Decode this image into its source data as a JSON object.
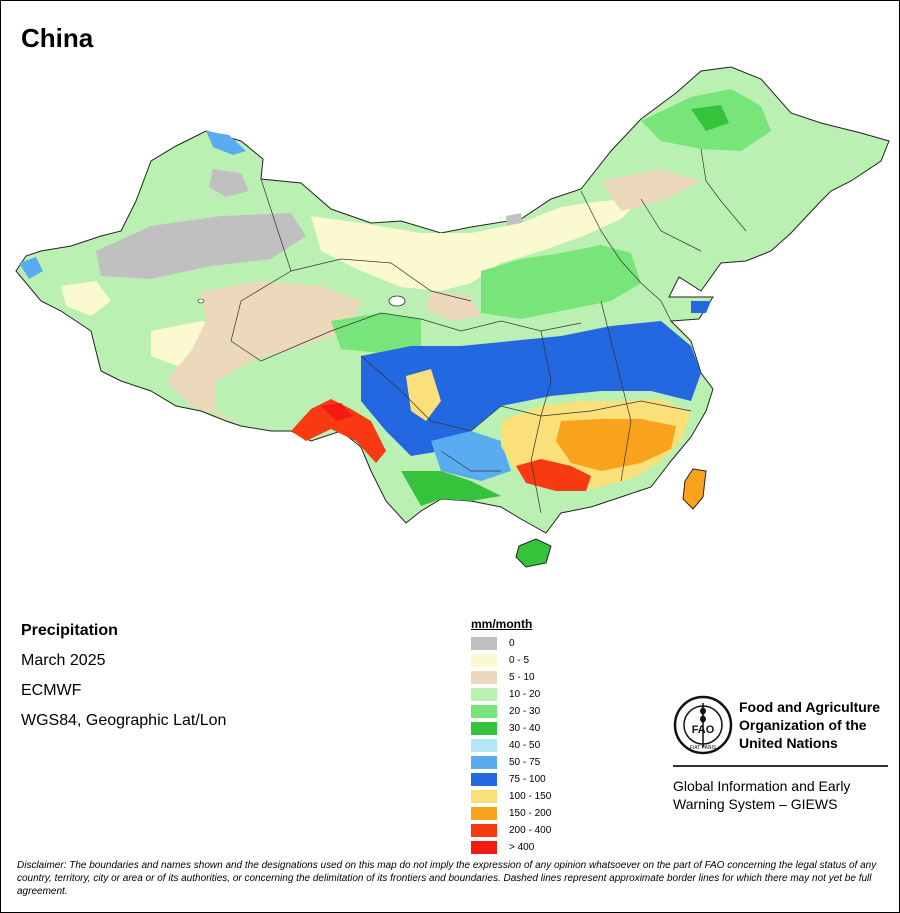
{
  "map": {
    "title": "China",
    "variable": "Precipitation",
    "period": "March 2025",
    "source": "ECMWF",
    "projection": "WGS84, Geographic Lat/Lon"
  },
  "legend": {
    "title": "mm/month",
    "classes": [
      {
        "label": "0",
        "color": "#c0c0c0"
      },
      {
        "label": "0 - 5",
        "color": "#fbf9cf"
      },
      {
        "label": "5 - 10",
        "color": "#ecd9bb"
      },
      {
        "label": "10 - 20",
        "color": "#bbf0b3"
      },
      {
        "label": "20 - 30",
        "color": "#78e57a"
      },
      {
        "label": "30 - 40",
        "color": "#36c33c"
      },
      {
        "label": "40 - 50",
        "color": "#b5e6f8"
      },
      {
        "label": "50 - 75",
        "color": "#5aacf0"
      },
      {
        "label": "75 - 100",
        "color": "#2368e0"
      },
      {
        "label": "100 - 150",
        "color": "#fbe07a"
      },
      {
        "label": "150 - 200",
        "color": "#f8a31b"
      },
      {
        "label": "200 - 400",
        "color": "#f83a12"
      },
      {
        "label": "> 400",
        "color": "#f21a12"
      }
    ]
  },
  "organization": {
    "logo_text": "FAO",
    "logo_ring_text": "FIAT PANIS",
    "name_line1": "Food and Agriculture",
    "name_line2": "Organization of the",
    "name_line3": "United Nations",
    "program_line1": "Global Information and Early",
    "program_line2": "Warning System – GIEWS"
  },
  "disclaimer": "Disclaimer: The boundaries and names shown and the designations used on this map do not imply the expression of any opinion whatsoever on the part of FAO concerning the legal status of any country, territory, city or area or of its authorities, or concerning the delimitation of its frontiers and boundaries. Dashed lines represent approximate border lines for which there may not yet be full agreement."
}
